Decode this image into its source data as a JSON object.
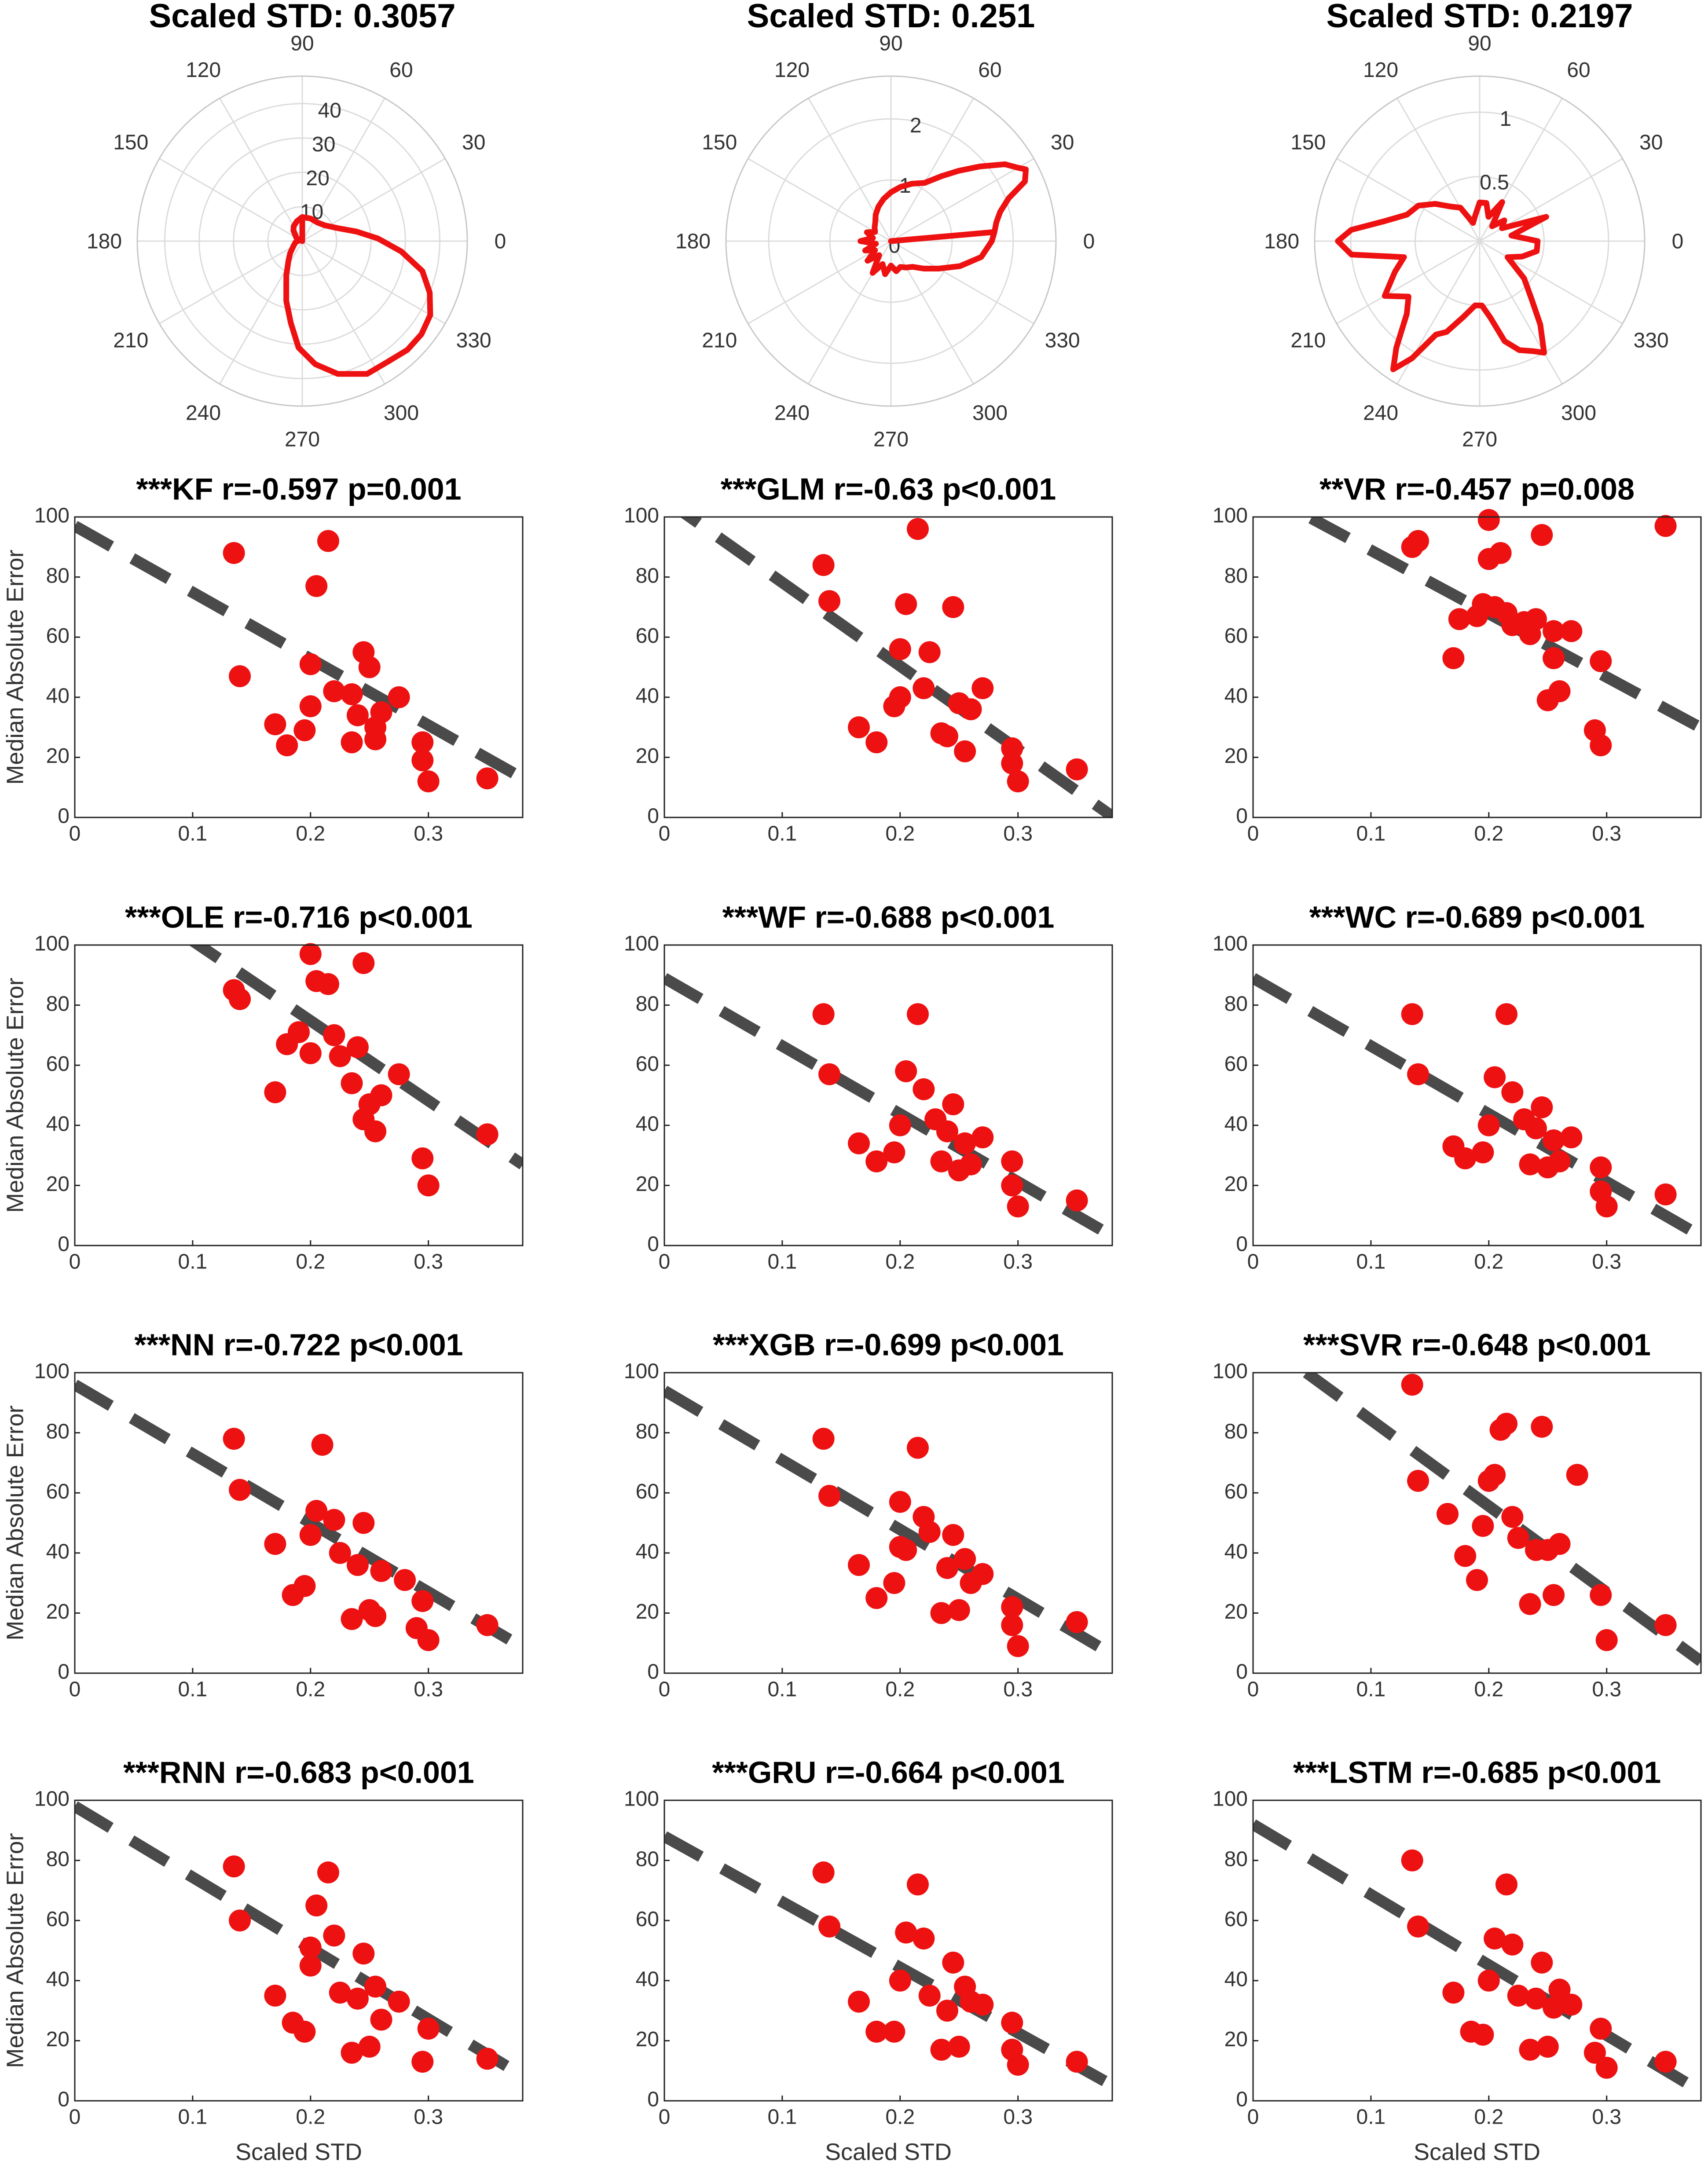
{
  "figure": {
    "xlabel": "Scaled STD",
    "ylabel": "Median Absolute Error"
  },
  "chart_data": [
    {
      "type": "polar",
      "title": "Scaled STD: 0.3057",
      "r_ticks": [
        "10",
        "20",
        "30",
        "40"
      ],
      "r_max": 48,
      "angle_ticks": [
        "0",
        "30",
        "60",
        "90",
        "120",
        "150",
        "180",
        "210",
        "240",
        "270",
        "300",
        "330"
      ],
      "points": [
        [
          0,
          0
        ],
        [
          90,
          7
        ],
        [
          105,
          6
        ],
        [
          120,
          5
        ],
        [
          130,
          4
        ],
        [
          150,
          2
        ],
        [
          170,
          1
        ],
        [
          190,
          2
        ],
        [
          210,
          3
        ],
        [
          225,
          5
        ],
        [
          235,
          7
        ],
        [
          245,
          11
        ],
        [
          255,
          18
        ],
        [
          262,
          24
        ],
        [
          268,
          31
        ],
        [
          276,
          36
        ],
        [
          285,
          40
        ],
        [
          296,
          43
        ],
        [
          305,
          43
        ],
        [
          314,
          44
        ],
        [
          322,
          44
        ],
        [
          330,
          43
        ],
        [
          338,
          40
        ],
        [
          346,
          36
        ],
        [
          354,
          29
        ],
        [
          2,
          22
        ],
        [
          10,
          16
        ],
        [
          20,
          11
        ],
        [
          35,
          8
        ],
        [
          50,
          7
        ],
        [
          70,
          7
        ],
        [
          90,
          7
        ]
      ]
    },
    {
      "type": "polar",
      "title": "Scaled STD: 0.251",
      "r_ticks": [
        "0",
        "1",
        "2"
      ],
      "r_max": 2.7,
      "angle_ticks": [
        "0",
        "30",
        "60",
        "90",
        "120",
        "150",
        "180",
        "210",
        "240",
        "270",
        "300",
        "330"
      ],
      "points": [
        [
          0,
          0
        ],
        [
          5,
          1.7
        ],
        [
          10,
          1.75
        ],
        [
          15,
          1.85
        ],
        [
          20,
          2.05
        ],
        [
          24,
          2.4
        ],
        [
          28,
          2.5
        ],
        [
          30,
          2.4
        ],
        [
          34,
          2.25
        ],
        [
          40,
          1.9
        ],
        [
          46,
          1.6
        ],
        [
          52,
          1.35
        ],
        [
          60,
          1.1
        ],
        [
          70,
          1.0
        ],
        [
          80,
          0.9
        ],
        [
          90,
          0.8
        ],
        [
          100,
          0.7
        ],
        [
          110,
          0.6
        ],
        [
          120,
          0.5
        ],
        [
          130,
          0.4
        ],
        [
          140,
          0.35
        ],
        [
          150,
          0.3
        ],
        [
          160,
          0.42
        ],
        [
          170,
          0.3
        ],
        [
          180,
          0.5
        ],
        [
          190,
          0.25
        ],
        [
          200,
          0.45
        ],
        [
          210,
          0.3
        ],
        [
          220,
          0.5
        ],
        [
          230,
          0.3
        ],
        [
          240,
          0.6
        ],
        [
          250,
          0.4
        ],
        [
          260,
          0.55
        ],
        [
          270,
          0.4
        ],
        [
          280,
          0.5
        ],
        [
          290,
          0.45
        ],
        [
          300,
          0.5
        ],
        [
          310,
          0.55
        ],
        [
          320,
          0.7
        ],
        [
          330,
          0.9
        ],
        [
          340,
          1.2
        ],
        [
          350,
          1.5
        ],
        [
          0,
          1.65
        ],
        [
          5,
          1.7
        ]
      ]
    },
    {
      "type": "polar",
      "title": "Scaled STD: 0.2197",
      "r_ticks": [
        "0.5",
        "1"
      ],
      "r_max": 1.28,
      "angle_ticks": [
        "0",
        "30",
        "60",
        "90",
        "120",
        "150",
        "180",
        "210",
        "240",
        "270",
        "300",
        "330"
      ],
      "points": [
        [
          0,
          0.45
        ],
        [
          10,
          0.25
        ],
        [
          20,
          0.55
        ],
        [
          30,
          0.2
        ],
        [
          40,
          0.25
        ],
        [
          50,
          0.15
        ],
        [
          60,
          0.35
        ],
        [
          70,
          0.2
        ],
        [
          80,
          0.3
        ],
        [
          90,
          0.3
        ],
        [
          100,
          0.2
        ],
        [
          110,
          0.15
        ],
        [
          120,
          0.3
        ],
        [
          130,
          0.35
        ],
        [
          140,
          0.45
        ],
        [
          150,
          0.55
        ],
        [
          160,
          0.6
        ],
        [
          168,
          0.75
        ],
        [
          175,
          1.0
        ],
        [
          180,
          1.1
        ],
        [
          186,
          1.0
        ],
        [
          192,
          0.6
        ],
        [
          200,
          0.7
        ],
        [
          210,
          0.85
        ],
        [
          218,
          0.7
        ],
        [
          225,
          0.8
        ],
        [
          232,
          1.05
        ],
        [
          236,
          1.2
        ],
        [
          240,
          1.05
        ],
        [
          245,
          0.8
        ],
        [
          250,
          0.75
        ],
        [
          258,
          0.6
        ],
        [
          266,
          0.5
        ],
        [
          272,
          0.5
        ],
        [
          278,
          0.6
        ],
        [
          284,
          0.8
        ],
        [
          290,
          0.9
        ],
        [
          296,
          0.95
        ],
        [
          300,
          1.0
        ],
        [
          306,
          0.8
        ],
        [
          312,
          0.6
        ],
        [
          320,
          0.45
        ],
        [
          330,
          0.25
        ],
        [
          340,
          0.35
        ],
        [
          350,
          0.45
        ],
        [
          0,
          0.45
        ]
      ]
    },
    {
      "type": "scatter",
      "title": "***KF r=-0.597 p=0.001",
      "fit": [
        97,
        -221
      ],
      "x": [
        0.135,
        0.14,
        0.17,
        0.18,
        0.195,
        0.2,
        0.2,
        0.205,
        0.215,
        0.22,
        0.235,
        0.235,
        0.24,
        0.245,
        0.25,
        0.255,
        0.255,
        0.26,
        0.275,
        0.295,
        0.295,
        0.3,
        0.35
      ],
      "y": [
        88,
        47,
        31,
        24,
        29,
        37,
        51,
        77,
        92,
        42,
        41,
        25,
        34,
        55,
        50,
        26,
        30,
        35,
        40,
        19,
        25,
        12,
        13
      ]
    },
    {
      "type": "scatter",
      "title": "***GLM r=-0.63 p<0.001",
      "fit": [
        106,
        -278
      ],
      "x": [
        0.135,
        0.14,
        0.165,
        0.18,
        0.195,
        0.2,
        0.2,
        0.205,
        0.215,
        0.22,
        0.225,
        0.235,
        0.24,
        0.245,
        0.25,
        0.255,
        0.26,
        0.27,
        0.295,
        0.295,
        0.3,
        0.35
      ],
      "y": [
        84,
        72,
        30,
        25,
        37,
        56,
        40,
        71,
        96,
        43,
        55,
        28,
        27,
        70,
        38,
        22,
        36,
        43,
        23,
        18,
        12,
        16
      ]
    },
    {
      "type": "scatter",
      "title": "**VR r=-0.457 p=0.008",
      "fit": [
        110,
        -211
      ],
      "x": [
        0.135,
        0.14,
        0.17,
        0.175,
        0.19,
        0.195,
        0.2,
        0.2,
        0.205,
        0.21,
        0.215,
        0.22,
        0.23,
        0.235,
        0.24,
        0.245,
        0.25,
        0.255,
        0.255,
        0.26,
        0.27,
        0.29,
        0.295,
        0.295,
        0.35
      ],
      "y": [
        90,
        92,
        53,
        66,
        67,
        71,
        99,
        86,
        70,
        88,
        68,
        64,
        65,
        61,
        66,
        94,
        39,
        62,
        53,
        42,
        62,
        29,
        52,
        24,
        97
      ]
    },
    {
      "type": "scatter",
      "title": "***OLE r=-0.716 p<0.001",
      "fit": [
        128,
        -266
      ],
      "x": [
        0.135,
        0.14,
        0.17,
        0.18,
        0.19,
        0.2,
        0.2,
        0.205,
        0.215,
        0.22,
        0.225,
        0.235,
        0.24,
        0.245,
        0.245,
        0.25,
        0.255,
        0.26,
        0.275,
        0.295,
        0.3,
        0.35
      ],
      "y": [
        85,
        82,
        51,
        67,
        71,
        97,
        64,
        88,
        87,
        70,
        63,
        54,
        66,
        94,
        42,
        47,
        38,
        50,
        57,
        29,
        20,
        37
      ]
    },
    {
      "type": "scatter",
      "title": "***WF r=-0.688 p<0.001",
      "fit": [
        89,
        -226
      ],
      "x": [
        0.135,
        0.14,
        0.165,
        0.18,
        0.195,
        0.2,
        0.205,
        0.215,
        0.22,
        0.23,
        0.235,
        0.24,
        0.245,
        0.25,
        0.255,
        0.26,
        0.27,
        0.295,
        0.295,
        0.3,
        0.35
      ],
      "y": [
        77,
        57,
        34,
        28,
        31,
        40,
        58,
        77,
        52,
        42,
        28,
        38,
        47,
        25,
        34,
        27,
        36,
        28,
        20,
        13,
        15
      ]
    },
    {
      "type": "scatter",
      "title": "***WC r=-0.689 p<0.001",
      "fit": [
        89,
        -226
      ],
      "x": [
        0.135,
        0.14,
        0.17,
        0.18,
        0.195,
        0.2,
        0.205,
        0.215,
        0.22,
        0.23,
        0.235,
        0.24,
        0.245,
        0.25,
        0.255,
        0.26,
        0.27,
        0.295,
        0.295,
        0.3,
        0.35
      ],
      "y": [
        77,
        57,
        33,
        29,
        31,
        40,
        56,
        77,
        51,
        42,
        27,
        39,
        46,
        26,
        35,
        28,
        36,
        26,
        18,
        13,
        17
      ]
    },
    {
      "type": "scatter",
      "title": "***NN r=-0.722 p<0.001",
      "fit": [
        96,
        -230
      ],
      "x": [
        0.135,
        0.14,
        0.17,
        0.185,
        0.195,
        0.2,
        0.205,
        0.21,
        0.22,
        0.225,
        0.235,
        0.24,
        0.245,
        0.25,
        0.255,
        0.26,
        0.28,
        0.29,
        0.295,
        0.3,
        0.35
      ],
      "y": [
        78,
        61,
        43,
        26,
        29,
        46,
        54,
        76,
        51,
        40,
        18,
        36,
        50,
        21,
        19,
        34,
        31,
        15,
        24,
        11,
        16
      ]
    },
    {
      "type": "scatter",
      "title": "***XGB r=-0.699 p<0.001",
      "fit": [
        94,
        -231
      ],
      "x": [
        0.135,
        0.14,
        0.165,
        0.18,
        0.195,
        0.2,
        0.2,
        0.205,
        0.215,
        0.22,
        0.225,
        0.235,
        0.24,
        0.245,
        0.25,
        0.255,
        0.26,
        0.27,
        0.295,
        0.295,
        0.3,
        0.35
      ],
      "y": [
        78,
        59,
        36,
        25,
        30,
        42,
        57,
        41,
        75,
        52,
        47,
        20,
        35,
        46,
        21,
        38,
        30,
        33,
        22,
        16,
        9,
        17
      ]
    },
    {
      "type": "scatter",
      "title": "***SVR r=-0.648 p<0.001",
      "fit": [
        113,
        -287
      ],
      "x": [
        0.135,
        0.14,
        0.165,
        0.18,
        0.19,
        0.195,
        0.2,
        0.205,
        0.21,
        0.215,
        0.22,
        0.225,
        0.235,
        0.24,
        0.245,
        0.25,
        0.255,
        0.26,
        0.275,
        0.295,
        0.3,
        0.35
      ],
      "y": [
        96,
        64,
        53,
        39,
        31,
        49,
        64,
        66,
        81,
        83,
        52,
        45,
        23,
        41,
        82,
        41,
        26,
        43,
        66,
        26,
        11,
        16
      ]
    },
    {
      "type": "scatter",
      "title": "***RNN r=-0.683 p<0.001",
      "fit": [
        98,
        -236
      ],
      "x": [
        0.135,
        0.14,
        0.17,
        0.185,
        0.195,
        0.2,
        0.2,
        0.205,
        0.215,
        0.22,
        0.225,
        0.235,
        0.24,
        0.245,
        0.25,
        0.255,
        0.26,
        0.275,
        0.295,
        0.3,
        0.35
      ],
      "y": [
        78,
        60,
        35,
        26,
        23,
        45,
        51,
        65,
        76,
        55,
        36,
        16,
        34,
        49,
        18,
        38,
        27,
        33,
        13,
        24,
        14
      ]
    },
    {
      "type": "scatter",
      "title": "***GRU r=-0.664 p<0.001",
      "fit": [
        88,
        -218
      ],
      "x": [
        0.135,
        0.14,
        0.165,
        0.18,
        0.195,
        0.2,
        0.205,
        0.215,
        0.22,
        0.225,
        0.235,
        0.24,
        0.245,
        0.25,
        0.255,
        0.26,
        0.27,
        0.295,
        0.295,
        0.3,
        0.35
      ],
      "y": [
        76,
        58,
        33,
        23,
        23,
        40,
        56,
        72,
        54,
        35,
        17,
        30,
        46,
        18,
        38,
        33,
        32,
        26,
        17,
        12,
        13
      ]
    },
    {
      "type": "scatter",
      "title": "***LSTM r=-0.685 p<0.001",
      "fit": [
        92,
        -234
      ],
      "x": [
        0.135,
        0.14,
        0.17,
        0.185,
        0.195,
        0.2,
        0.205,
        0.215,
        0.22,
        0.225,
        0.235,
        0.24,
        0.245,
        0.25,
        0.255,
        0.26,
        0.27,
        0.29,
        0.295,
        0.3,
        0.35
      ],
      "y": [
        80,
        58,
        36,
        23,
        22,
        40,
        54,
        72,
        52,
        35,
        17,
        34,
        46,
        18,
        31,
        37,
        32,
        16,
        24,
        11,
        13
      ]
    }
  ]
}
